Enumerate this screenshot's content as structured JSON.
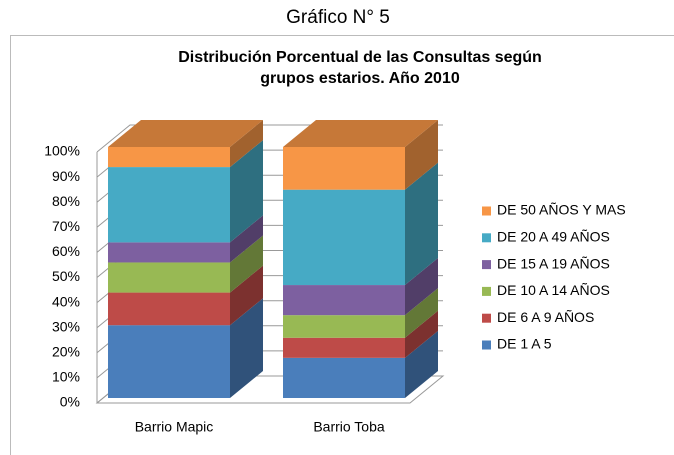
{
  "heading": "Gráfico N° 5",
  "chart_data": {
    "type": "stacked-bar-3d",
    "title": [
      "Distribución Porcentual de las Consultas según",
      "grupos estarios. Año 2010"
    ],
    "categories": [
      "Barrio Mapic",
      "Barrio Toba"
    ],
    "series": [
      {
        "name": "DE 1 A 5",
        "color": "#4a7ebb",
        "values": [
          29,
          16
        ]
      },
      {
        "name": "DE 6 A 9 AÑOS",
        "color": "#be4b48",
        "values": [
          13,
          8
        ]
      },
      {
        "name": "DE 10 A 14 AÑOS",
        "color": "#98b954",
        "values": [
          12,
          9
        ]
      },
      {
        "name": "DE 15 A 19 AÑOS",
        "color": "#7d60a0",
        "values": [
          8,
          12
        ]
      },
      {
        "name": "DE 20 A 49 AÑOS",
        "color": "#46aac5",
        "values": [
          30,
          38
        ]
      },
      {
        "name": "DE 50 AÑOS Y MAS",
        "color": "#f79646",
        "values": [
          8,
          17
        ]
      }
    ],
    "ylim": [
      0,
      100
    ],
    "yticks": [
      {
        "value": 0,
        "label": "0%"
      },
      {
        "value": 10,
        "label": "10%"
      },
      {
        "value": 20,
        "label": "20%"
      },
      {
        "value": 30,
        "label": "30%"
      },
      {
        "value": 40,
        "label": "40%"
      },
      {
        "value": 50,
        "label": "50%"
      },
      {
        "value": 60,
        "label": "60%"
      },
      {
        "value": 70,
        "label": "70%"
      },
      {
        "value": 80,
        "label": "80%"
      },
      {
        "value": 90,
        "label": "90%"
      },
      {
        "value": 100,
        "label": "100%"
      }
    ],
    "grid": true,
    "legend": "right"
  }
}
